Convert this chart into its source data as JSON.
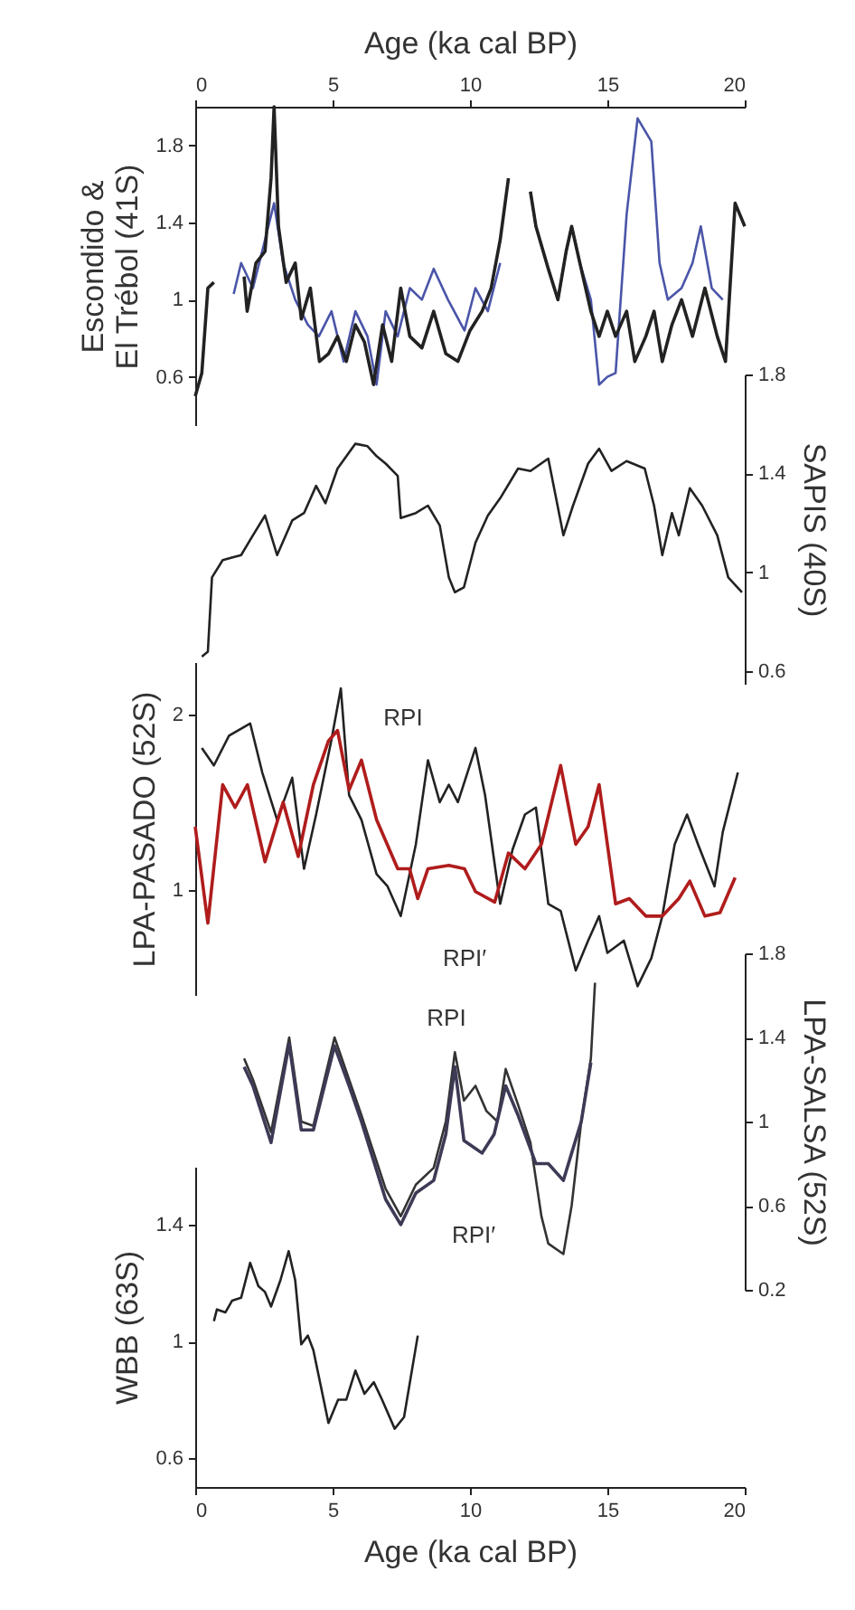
{
  "chart_data": [
    {
      "type": "line",
      "xlabel": "Age (ka cal BP)",
      "xlim": [
        0,
        20
      ],
      "xticks": [
        0,
        5,
        10,
        15,
        20
      ],
      "ylabel": "Escondido &\nEl Trébol (41S)",
      "ylim": [
        0.35,
        2.0
      ],
      "yticks": [
        0.6,
        1,
        1.4,
        1.8
      ],
      "series": [
        {
          "color": "#4a55a8",
          "x": [
            1.4,
            1.67,
            2.1,
            2.54,
            2.87,
            3.2,
            3.64,
            4.1,
            4.5,
            4.96,
            5.4,
            5.83,
            6.27,
            6.6,
            6.93,
            7.37,
            7.81,
            8.25,
            8.68,
            9.2,
            9.8,
            10.2,
            10.65,
            11.1,
            11.8,
            12.2,
            12.4,
            12.85,
            13.2,
            13.5,
            13.7,
            14.0,
            14.4,
            14.7,
            15.0,
            15.3,
            15.7,
            16.1,
            16.6,
            16.9,
            17.2,
            17.7,
            18.1,
            18.4,
            18.8,
            19.2
          ],
          "values": [
            1.03,
            1.19,
            1.06,
            1.31,
            1.5,
            1.19,
            1.0,
            0.87,
            0.81,
            0.94,
            0.68,
            0.94,
            0.81,
            0.56,
            0.94,
            0.81,
            1.06,
            1.0,
            1.16,
            1.0,
            0.84,
            1.06,
            0.94,
            1.19,
            null,
            1.56,
            1.38,
            1.16,
            1.0,
            1.25,
            1.38,
            1.19,
            1.0,
            0.56,
            0.6,
            0.62,
            1.44,
            1.94,
            1.82,
            1.19,
            1.0,
            1.06,
            1.19,
            1.38,
            1.06,
            1.0
          ]
        },
        {
          "color": "#222222",
          "x": [
            0,
            0.24,
            0.46,
            0.68,
            1.2,
            1.78,
            1.89,
            2.21,
            2.54,
            2.76,
            2.87,
            3.03,
            3.31,
            3.64,
            3.86,
            4.19,
            4.52,
            4.85,
            5.18,
            5.5,
            5.83,
            6.16,
            6.49,
            6.82,
            7.15,
            7.48,
            7.81,
            8.25,
            8.68,
            9.12,
            9.56,
            10.0,
            10.44,
            10.77,
            11.1,
            11.4,
            11.8,
            12.2,
            12.4,
            12.85,
            13.2,
            13.5,
            13.7,
            14.0,
            14.4,
            14.7,
            15.0,
            15.3,
            15.7,
            16.0,
            16.4,
            16.7,
            17.0,
            17.35,
            17.7,
            18.1,
            18.55,
            19.0,
            19.3,
            19.65,
            20.0
          ],
          "values": [
            0.5,
            0.62,
            1.06,
            1.09,
            null,
            1.12,
            0.94,
            1.19,
            1.25,
            1.63,
            2.0,
            1.38,
            1.09,
            1.19,
            0.9,
            1.06,
            0.68,
            0.72,
            0.81,
            0.68,
            0.87,
            0.78,
            0.56,
            0.87,
            0.68,
            1.06,
            0.81,
            0.75,
            0.94,
            0.72,
            0.68,
            0.84,
            0.94,
            1.06,
            1.31,
            1.63,
            null,
            1.56,
            1.38,
            1.16,
            1.0,
            1.25,
            1.38,
            1.19,
            0.94,
            0.81,
            0.94,
            0.81,
            0.94,
            0.68,
            0.81,
            0.94,
            0.68,
            0.87,
            1.0,
            0.81,
            1.06,
            0.81,
            0.68,
            1.5,
            1.38
          ]
        }
      ]
    },
    {
      "type": "line",
      "xlim": [
        0,
        20
      ],
      "tick_labels": "y",
      "y2label": "SAPIS (40S)",
      "y2lim": [
        0.55,
        1.8
      ],
      "y2ticks": [
        0.6,
        1,
        1.4,
        1.8
      ],
      "series": [
        {
          "color": "#222222",
          "axis": "y2",
          "x": [
            0.24,
            0.46,
            0.61,
            1.0,
            1.67,
            2.1,
            2.54,
            2.98,
            3.53,
            3.96,
            4.4,
            4.74,
            5.18,
            5.83,
            6.27,
            6.6,
            6.93,
            7.37,
            7.48,
            8.03,
            8.47,
            8.9,
            9.23,
            9.45,
            9.78,
            10.2,
            10.65,
            11.1,
            11.75,
            12.2,
            12.85,
            13.4,
            13.75,
            14.3,
            14.7,
            15.15,
            15.7,
            16.36,
            16.7,
            17.0,
            17.35,
            17.6,
            18.0,
            18.45,
            19.0,
            19.4,
            19.9
          ],
          "values": [
            0.66,
            0.68,
            0.98,
            1.05,
            1.07,
            1.15,
            1.23,
            1.07,
            1.21,
            1.24,
            1.35,
            1.28,
            1.42,
            1.52,
            1.51,
            1.47,
            1.44,
            1.39,
            1.22,
            1.24,
            1.27,
            1.19,
            0.98,
            0.92,
            0.94,
            1.12,
            1.23,
            1.3,
            1.42,
            1.41,
            1.46,
            1.15,
            1.27,
            1.44,
            1.5,
            1.41,
            1.45,
            1.42,
            1.27,
            1.07,
            1.24,
            1.15,
            1.34,
            1.27,
            1.15,
            0.98,
            0.92
          ]
        }
      ]
    },
    {
      "type": "line",
      "xlim": [
        0,
        20
      ],
      "tick_labels": "y",
      "ylabel": "LPA-PASADO (52S)",
      "ylim": [
        0.4,
        2.3
      ],
      "yticks": [
        1,
        2
      ],
      "annotations": [
        "RPI",
        "RPI′"
      ],
      "series": [
        {
          "color": "#222222",
          "x": [
            0.24,
            0.68,
            1.23,
            2.0,
            2.44,
            2.98,
            3.53,
            3.96,
            4.4,
            4.95,
            5.3,
            5.6,
            6.05,
            6.6,
            7.0,
            7.48,
            8.03,
            8.47,
            8.9,
            9.23,
            9.56,
            10.2,
            10.55,
            11.1,
            11.55,
            12.0,
            12.4,
            12.85,
            13.3,
            13.85,
            14.3,
            14.7,
            15.0,
            15.6,
            16.1,
            16.6,
            17.0,
            17.45,
            17.9,
            18.3,
            18.9,
            19.2,
            19.75
          ],
          "values": [
            1.81,
            1.71,
            1.88,
            1.95,
            1.67,
            1.4,
            1.64,
            1.12,
            1.43,
            1.85,
            2.15,
            1.54,
            1.4,
            1.09,
            1.02,
            0.85,
            1.26,
            1.74,
            1.5,
            1.6,
            1.5,
            1.81,
            1.54,
            0.92,
            1.23,
            1.43,
            1.47,
            0.92,
            0.88,
            0.54,
            0.71,
            0.85,
            0.64,
            0.71,
            0.45,
            0.61,
            0.85,
            1.26,
            1.43,
            1.26,
            1.02,
            1.33,
            1.67
          ]
        },
        {
          "color": "#b01c1c",
          "x": [
            0,
            0.46,
            1.0,
            1.45,
            1.9,
            2.54,
            3.2,
            3.75,
            4.3,
            4.85,
            5.18,
            5.6,
            6.05,
            6.6,
            7.37,
            7.8,
            8.1,
            8.47,
            9.23,
            9.8,
            10.2,
            10.9,
            11.4,
            12.0,
            12.6,
            13.3,
            13.85,
            14.3,
            14.7,
            15.3,
            15.8,
            16.4,
            17.0,
            17.6,
            18.0,
            18.55,
            19.1,
            19.65
          ],
          "values": [
            1.36,
            0.81,
            1.6,
            1.47,
            1.6,
            1.16,
            1.5,
            1.19,
            1.6,
            1.85,
            1.91,
            1.57,
            1.74,
            1.4,
            1.12,
            1.12,
            0.95,
            1.12,
            1.14,
            1.12,
            0.99,
            0.93,
            1.21,
            1.12,
            1.26,
            1.71,
            1.26,
            1.36,
            1.6,
            0.92,
            0.95,
            0.85,
            0.85,
            0.95,
            1.05,
            0.85,
            0.87,
            1.07
          ]
        }
      ]
    },
    {
      "type": "line",
      "xlim": [
        0,
        20
      ],
      "tick_labels": "y",
      "y2label": "LPA-SALSA (52S)",
      "y2lim": [
        0.2,
        1.8
      ],
      "y2ticks": [
        0.2,
        0.6,
        1,
        1.4,
        1.8
      ],
      "annotations": [
        "RPI",
        "RPI′"
      ],
      "series": [
        {
          "color": "#333333",
          "axis": "y2",
          "x": [
            1.78,
            2.1,
            2.76,
            3.42,
            3.86,
            4.3,
            5.07,
            5.6,
            6.05,
            6.93,
            7.48,
            8.03,
            8.68,
            9.12,
            9.45,
            9.78,
            10.2,
            10.6,
            11.0,
            11.3,
            11.75,
            12.2,
            12.6,
            12.85,
            13.4,
            13.7,
            14.05,
            14.4,
            14.55
          ],
          "values": [
            1.3,
            1.2,
            0.95,
            1.4,
            1.0,
            0.98,
            1.4,
            1.2,
            1.03,
            0.68,
            0.55,
            0.7,
            0.78,
            1.0,
            1.33,
            1.1,
            1.17,
            1.05,
            1.0,
            1.25,
            1.08,
            0.9,
            0.55,
            0.42,
            0.37,
            0.6,
            1.0,
            1.3,
            1.66
          ]
        },
        {
          "color": "#3c3a55",
          "axis": "y2",
          "x": [
            1.78,
            2.1,
            2.76,
            3.42,
            3.86,
            4.3,
            5.07,
            5.6,
            6.05,
            6.93,
            7.48,
            8.03,
            8.68,
            9.12,
            9.45,
            9.78,
            10.44,
            10.88,
            11.3,
            11.75,
            12.4,
            12.85,
            13.4,
            13.7,
            14.05,
            14.4
          ],
          "values": [
            1.26,
            1.17,
            0.9,
            1.37,
            0.96,
            0.96,
            1.36,
            1.17,
            1.0,
            0.63,
            0.51,
            0.66,
            0.72,
            0.94,
            1.26,
            0.91,
            0.85,
            0.94,
            1.17,
            1.03,
            0.8,
            0.8,
            0.72,
            0.85,
            1.0,
            1.28
          ]
        }
      ]
    },
    {
      "type": "line",
      "xlabel": "Age (ka cal BP)",
      "xlim": [
        0,
        20
      ],
      "xticks": [
        0,
        5,
        10,
        15,
        20
      ],
      "ylabel": "WBB (63S)",
      "ylim": [
        0.5,
        1.6
      ],
      "yticks": [
        0.6,
        1,
        1.4
      ],
      "series": [
        {
          "color": "#222222",
          "x": [
            0.68,
            0.79,
            1.1,
            1.34,
            1.67,
            2.0,
            2.3,
            2.54,
            2.76,
            3.1,
            3.4,
            3.64,
            3.86,
            4.1,
            4.3,
            4.85,
            5.2,
            5.5,
            5.83,
            6.16,
            6.5,
            6.8,
            7.26,
            7.6,
            8.1
          ],
          "values": [
            1.07,
            1.11,
            1.1,
            1.14,
            1.15,
            1.27,
            1.19,
            1.17,
            1.12,
            1.21,
            1.31,
            1.21,
            0.99,
            1.02,
            0.97,
            0.72,
            0.8,
            0.8,
            0.9,
            0.82,
            0.86,
            0.8,
            0.7,
            0.74,
            1.02
          ]
        }
      ]
    }
  ]
}
